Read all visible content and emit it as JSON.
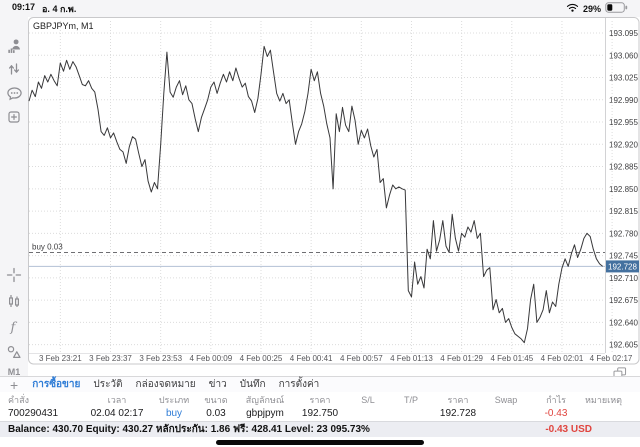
{
  "status_bar": {
    "time": "09:17",
    "date": "อ. 4 ก.พ.",
    "battery_percent": "29%",
    "icons": [
      "wifi-icon",
      "battery-icon"
    ]
  },
  "sidebar": {
    "icons_top": [
      "account-icon",
      "buy-sell-arrows-icon",
      "chat-icon",
      "new-order-icon"
    ],
    "icons_bottom": [
      "crosshair-icon",
      "candlestick-chart-icon",
      "indicator-function-icon",
      "objects-shapes-icon"
    ],
    "timeframe": "M1"
  },
  "chart": {
    "title": "GBPJPYm, M1",
    "window_icon": "window-switcher-icon"
  },
  "chart_data": {
    "type": "line",
    "title": "GBPJPYm, M1",
    "symbol": "GBPJPYm",
    "timeframe": "M1",
    "grid": true,
    "legend": false,
    "ylim": [
      192.588,
      193.113
    ],
    "y_ticks": [
      193.095,
      193.06,
      193.025,
      192.99,
      192.955,
      192.92,
      192.885,
      192.85,
      192.815,
      192.78,
      192.745,
      192.71,
      192.675,
      192.64,
      192.605
    ],
    "x_tick_labels": [
      "3 Feb 23:21",
      "3 Feb 23:37",
      "3 Feb 23:53",
      "4 Feb 00:09",
      "4 Feb 00:25",
      "4 Feb 00:41",
      "4 Feb 00:57",
      "4 Feb 01:13",
      "4 Feb 01:29",
      "4 Feb 01:45",
      "4 Feb 02:01",
      "4 Feb 02:17"
    ],
    "x_tick_minutes": [
      10,
      26,
      42,
      58,
      74,
      90,
      106,
      122,
      138,
      154,
      170,
      186
    ],
    "buy_line": {
      "price": 192.75,
      "label": "buy 0.03"
    },
    "current_price": 192.728,
    "series": [
      {
        "name": "GBPJPYm close",
        "points": [
          [
            0,
            192.988
          ],
          [
            1,
            193.005
          ],
          [
            2,
            192.995
          ],
          [
            3,
            193.018
          ],
          [
            4,
            193.008
          ],
          [
            5,
            193.028
          ],
          [
            6,
            193.018
          ],
          [
            7,
            193.03
          ],
          [
            8,
            193.02
          ],
          [
            9,
            193.012
          ],
          [
            10,
            193.048
          ],
          [
            11,
            193.035
          ],
          [
            12,
            193.052
          ],
          [
            13,
            193.038
          ],
          [
            14,
            193.05
          ],
          [
            15,
            193.042
          ],
          [
            16,
            193.028
          ],
          [
            17,
            193.014
          ],
          [
            18,
            193.012
          ],
          [
            19,
            193.02
          ],
          [
            20,
            193.008
          ],
          [
            21,
            193.002
          ],
          [
            22,
            192.975
          ],
          [
            23,
            192.94
          ],
          [
            24,
            192.934
          ],
          [
            25,
            192.946
          ],
          [
            26,
            192.93
          ],
          [
            27,
            192.938
          ],
          [
            28,
            192.924
          ],
          [
            29,
            192.912
          ],
          [
            30,
            192.908
          ],
          [
            31,
            192.89
          ],
          [
            32,
            192.916
          ],
          [
            33,
            192.932
          ],
          [
            34,
            192.928
          ],
          [
            35,
            192.906
          ],
          [
            36,
            192.885
          ],
          [
            37,
            192.896
          ],
          [
            38,
            192.862
          ],
          [
            39,
            192.845
          ],
          [
            40,
            192.86
          ],
          [
            41,
            192.85
          ],
          [
            42,
            192.92
          ],
          [
            43,
            193.0
          ],
          [
            44,
            193.065
          ],
          [
            45,
            193.002
          ],
          [
            46,
            192.994
          ],
          [
            47,
            193.01
          ],
          [
            48,
            193.02
          ],
          [
            49,
            192.998
          ],
          [
            50,
            193.012
          ],
          [
            51,
            192.99
          ],
          [
            52,
            192.984
          ],
          [
            53,
            192.96
          ],
          [
            54,
            192.94
          ],
          [
            55,
            192.962
          ],
          [
            56,
            192.976
          ],
          [
            57,
            192.99
          ],
          [
            58,
            193.01
          ],
          [
            59,
            193.018
          ],
          [
            60,
            193.0
          ],
          [
            61,
            193.016
          ],
          [
            62,
            193.03
          ],
          [
            63,
            193.018
          ],
          [
            64,
            193.034
          ],
          [
            65,
            193.02
          ],
          [
            66,
            193.04
          ],
          [
            67,
            193.024
          ],
          [
            68,
            193.01
          ],
          [
            69,
            193.016
          ],
          [
            70,
            192.995
          ],
          [
            71,
            192.988
          ],
          [
            72,
            192.97
          ],
          [
            73,
            192.992
          ],
          [
            74,
            193.03
          ],
          [
            75,
            193.074
          ],
          [
            76,
            193.058
          ],
          [
            77,
            193.068
          ],
          [
            78,
            193.034
          ],
          [
            79,
            193.0
          ],
          [
            80,
            192.988
          ],
          [
            81,
            193.0
          ],
          [
            82,
            192.984
          ],
          [
            83,
            192.99
          ],
          [
            84,
            192.954
          ],
          [
            85,
            192.92
          ],
          [
            86,
            192.94
          ],
          [
            87,
            192.952
          ],
          [
            88,
            192.972
          ],
          [
            89,
            193.0
          ],
          [
            90,
            193.038
          ],
          [
            91,
            193.02
          ],
          [
            92,
            193.034
          ],
          [
            93,
            193.0
          ],
          [
            94,
            192.98
          ],
          [
            95,
            192.952
          ],
          [
            96,
            192.93
          ],
          [
            97,
            192.85
          ],
          [
            98,
            192.968
          ],
          [
            99,
            192.94
          ],
          [
            100,
            192.978
          ],
          [
            101,
            192.95
          ],
          [
            102,
            192.94
          ],
          [
            103,
            192.98
          ],
          [
            104,
            192.958
          ],
          [
            105,
            192.92
          ],
          [
            106,
            192.942
          ],
          [
            107,
            192.93
          ],
          [
            108,
            192.944
          ],
          [
            109,
            192.918
          ],
          [
            110,
            192.9
          ],
          [
            111,
            192.912
          ],
          [
            112,
            192.86
          ],
          [
            113,
            192.866
          ],
          [
            114,
            192.82
          ],
          [
            115,
            192.84
          ],
          [
            116,
            192.856
          ],
          [
            117,
            192.85
          ],
          [
            118,
            192.853
          ],
          [
            119,
            192.85
          ],
          [
            120,
            192.848
          ],
          [
            121,
            192.69
          ],
          [
            122,
            192.68
          ],
          [
            123,
            192.735
          ],
          [
            124,
            192.7
          ],
          [
            125,
            192.712
          ],
          [
            126,
            192.694
          ],
          [
            127,
            192.755
          ],
          [
            128,
            192.74
          ],
          [
            129,
            192.8
          ],
          [
            130,
            192.752
          ],
          [
            131,
            192.77
          ],
          [
            132,
            192.8
          ],
          [
            133,
            192.76
          ],
          [
            134,
            192.75
          ],
          [
            135,
            192.81
          ],
          [
            136,
            192.772
          ],
          [
            137,
            192.752
          ],
          [
            138,
            192.78
          ],
          [
            139,
            192.774
          ],
          [
            140,
            192.79
          ],
          [
            141,
            192.782
          ],
          [
            142,
            192.8
          ],
          [
            143,
            192.772
          ],
          [
            144,
            192.78
          ],
          [
            145,
            192.712
          ],
          [
            146,
            192.722
          ],
          [
            147,
            192.726
          ],
          [
            148,
            192.66
          ],
          [
            149,
            192.676
          ],
          [
            150,
            192.655
          ],
          [
            151,
            192.662
          ],
          [
            152,
            192.64
          ],
          [
            153,
            192.646
          ],
          [
            154,
            192.632
          ],
          [
            155,
            192.622
          ],
          [
            156,
            192.618
          ],
          [
            157,
            192.614
          ],
          [
            158,
            192.608
          ],
          [
            159,
            192.63
          ],
          [
            160,
            192.676
          ],
          [
            161,
            192.7
          ],
          [
            162,
            192.64
          ],
          [
            163,
            192.648
          ],
          [
            164,
            192.66
          ],
          [
            165,
            192.69
          ],
          [
            166,
            192.655
          ],
          [
            167,
            192.672
          ],
          [
            168,
            192.665
          ],
          [
            169,
            192.7
          ],
          [
            170,
            192.725
          ],
          [
            171,
            192.74
          ],
          [
            172,
            192.728
          ],
          [
            173,
            192.748
          ],
          [
            174,
            192.762
          ],
          [
            175,
            192.742
          ],
          [
            176,
            192.755
          ],
          [
            177,
            192.772
          ],
          [
            178,
            192.78
          ],
          [
            179,
            192.775
          ],
          [
            180,
            192.755
          ],
          [
            181,
            192.74
          ],
          [
            182,
            192.732
          ],
          [
            183,
            192.728
          ]
        ]
      }
    ]
  },
  "tabs": {
    "add_label": "+",
    "items": [
      {
        "label": "การซื้อขาย",
        "active": true
      },
      {
        "label": "ประวัติ",
        "active": false
      },
      {
        "label": "กล่องจดหมาย",
        "active": false
      },
      {
        "label": "ข่าว",
        "active": false
      },
      {
        "label": "บันทึก",
        "active": false
      },
      {
        "label": "การตั้งค่า",
        "active": false
      }
    ]
  },
  "positions_table": {
    "columns": [
      "คำสั่ง",
      "เวลา",
      "ประเภท",
      "ขนาด",
      "สัญลักษณ์",
      "ราคา",
      "S/L",
      "T/P",
      "ราคา",
      "Swap",
      "กำไร",
      "หมายเหตุ"
    ],
    "rows": [
      {
        "order": "700290431",
        "time": "02.04 02:17",
        "type": "buy",
        "volume": "0.03",
        "symbol": "gbpjpym",
        "open_price": "192.750",
        "sl": "",
        "tp": "",
        "price": "192.728",
        "swap": "",
        "profit": "-0.43",
        "comment": ""
      }
    ]
  },
  "account_summary": {
    "text": "Balance: 430.70 Equity: 430.27 หลักประกัน: 1.86 ฟรี: 428.41 Level: 23 095.73%",
    "profit_text": "-0.43  USD"
  },
  "colors": {
    "accent_blue": "#2e7cd6",
    "loss_red": "#e0453f",
    "price_badge": "#44719f",
    "chart_line": "#38383a",
    "grid": "#dcdcdc"
  }
}
